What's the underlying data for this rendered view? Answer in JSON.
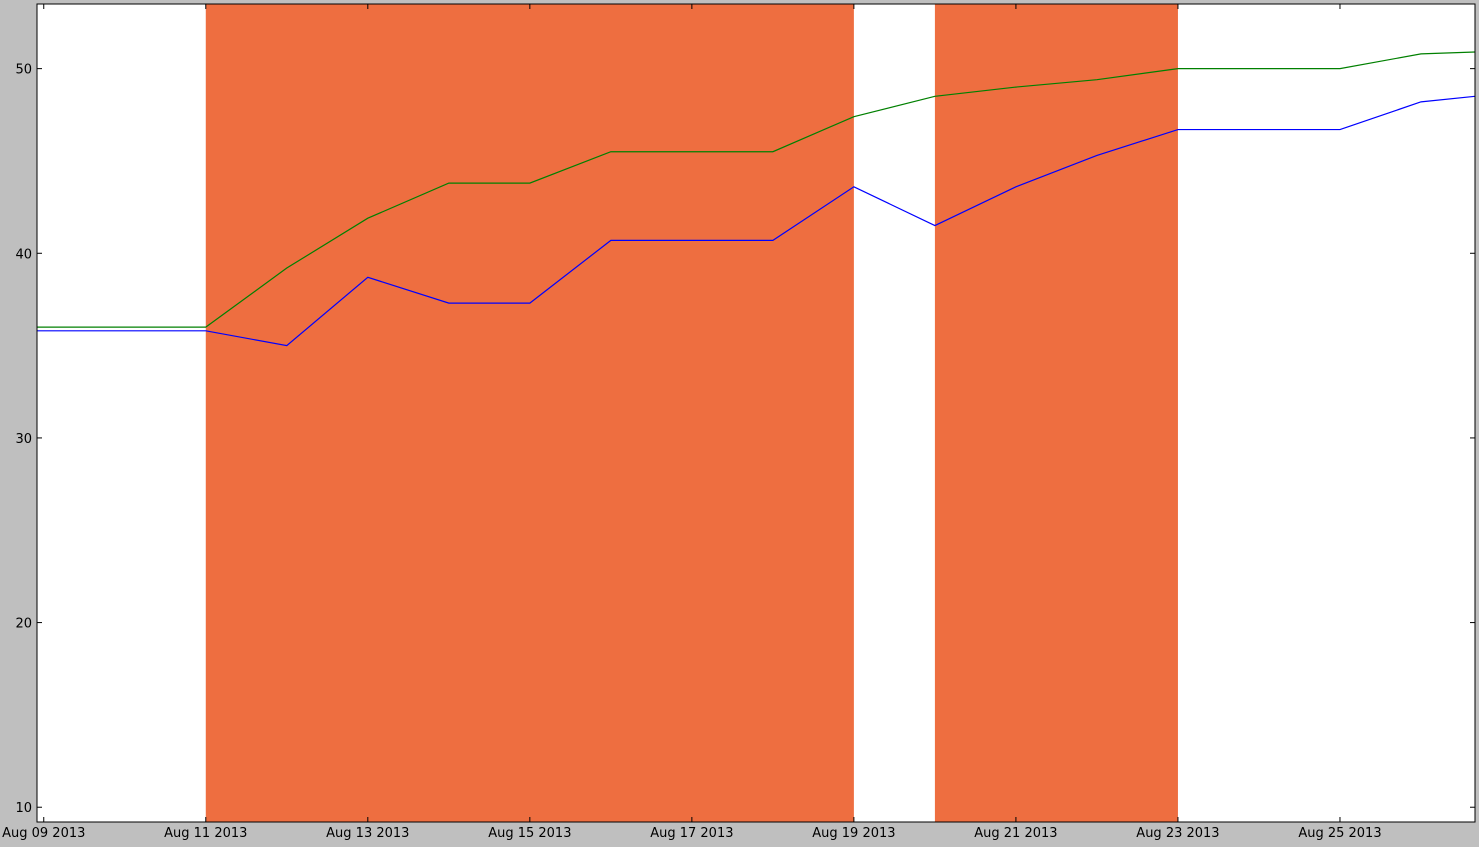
{
  "chart_data": {
    "type": "line",
    "title": "",
    "xlabel": "",
    "ylabel": "",
    "grid": false,
    "xlim": [
      "2013-08-08T22:00",
      "2013-08-26T16:00"
    ],
    "ylim": [
      9.2,
      53.5
    ],
    "x_ticks": [
      "Aug 09 2013",
      "Aug 11 2013",
      "Aug 13 2013",
      "Aug 15 2013",
      "Aug 17 2013",
      "Aug 19 2013",
      "Aug 21 2013",
      "Aug 23 2013",
      "Aug 25 2013"
    ],
    "x_tick_dates": [
      "2013-08-09",
      "2013-08-11",
      "2013-08-13",
      "2013-08-15",
      "2013-08-17",
      "2013-08-19",
      "2013-08-21",
      "2013-08-23",
      "2013-08-25"
    ],
    "y_ticks": [
      10,
      20,
      30,
      40,
      50
    ],
    "shaded_spans": [
      {
        "start": "2013-08-11",
        "end": "2013-08-19",
        "color": "#ee6e40"
      },
      {
        "start": "2013-08-20",
        "end": "2013-08-23",
        "color": "#ee6e40"
      }
    ],
    "series": [
      {
        "color": "#008000",
        "points": [
          [
            "2013-08-08T22:00",
            36.0
          ],
          [
            "2013-08-11",
            36.0
          ],
          [
            "2013-08-12",
            39.2
          ],
          [
            "2013-08-13",
            41.9
          ],
          [
            "2013-08-14",
            43.8
          ],
          [
            "2013-08-15",
            43.8
          ],
          [
            "2013-08-16",
            45.5
          ],
          [
            "2013-08-17",
            45.5
          ],
          [
            "2013-08-18",
            45.5
          ],
          [
            "2013-08-19",
            47.4
          ],
          [
            "2013-08-20",
            48.5
          ],
          [
            "2013-08-21",
            49.0
          ],
          [
            "2013-08-22",
            49.4
          ],
          [
            "2013-08-23",
            50.0
          ],
          [
            "2013-08-24",
            50.0
          ],
          [
            "2013-08-25",
            50.0
          ],
          [
            "2013-08-26",
            50.8
          ],
          [
            "2013-08-26T16:00",
            50.9
          ]
        ]
      },
      {
        "color": "#0000ff",
        "points": [
          [
            "2013-08-08T22:00",
            35.8
          ],
          [
            "2013-08-11",
            35.8
          ],
          [
            "2013-08-12",
            35.0
          ],
          [
            "2013-08-13",
            38.7
          ],
          [
            "2013-08-14",
            37.3
          ],
          [
            "2013-08-15",
            37.3
          ],
          [
            "2013-08-16",
            40.7
          ],
          [
            "2013-08-17",
            40.7
          ],
          [
            "2013-08-18",
            40.7
          ],
          [
            "2013-08-19",
            43.6
          ],
          [
            "2013-08-20",
            41.5
          ],
          [
            "2013-08-21",
            43.6
          ],
          [
            "2013-08-22",
            45.3
          ],
          [
            "2013-08-23",
            46.7
          ],
          [
            "2013-08-24",
            46.7
          ],
          [
            "2013-08-25",
            46.7
          ],
          [
            "2013-08-26",
            48.2
          ],
          [
            "2013-08-26T16:00",
            48.5
          ]
        ]
      }
    ]
  }
}
